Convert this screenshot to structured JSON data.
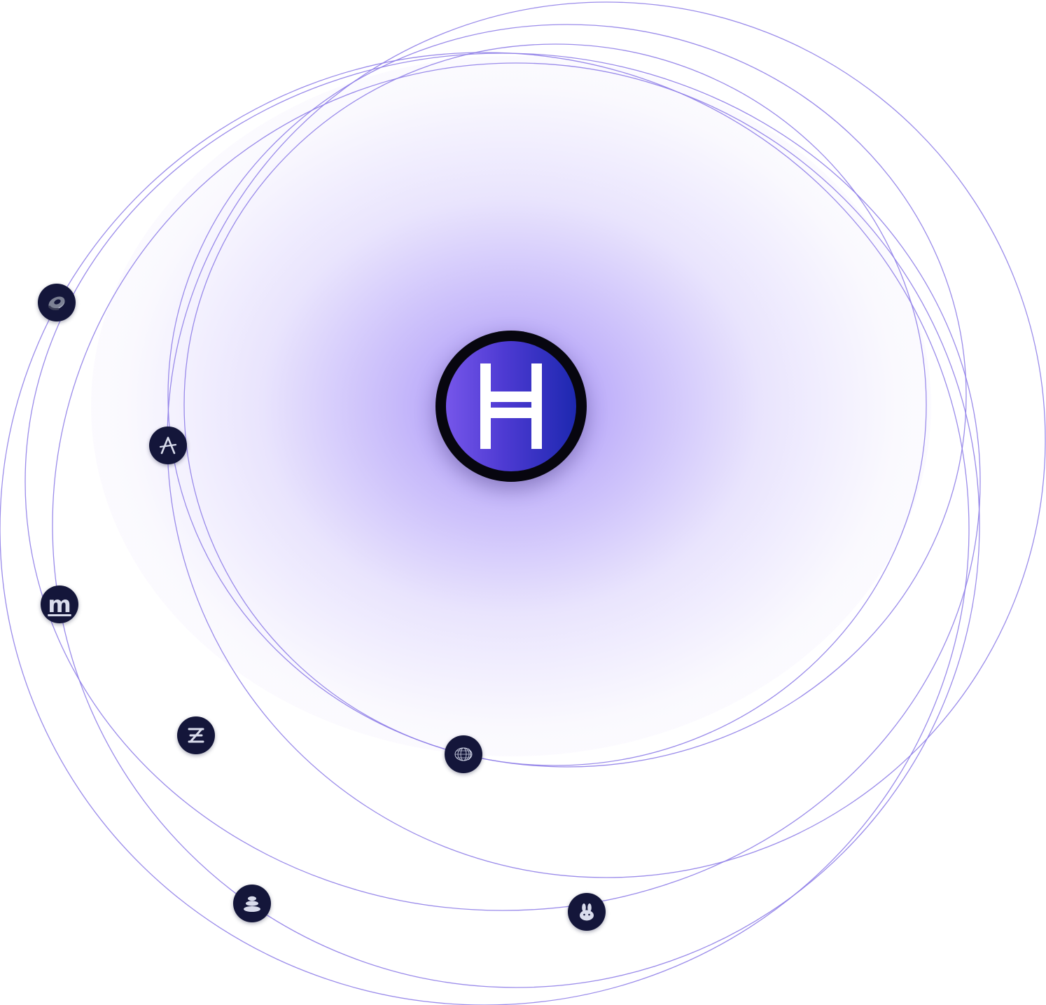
{
  "hub": {
    "icon": "hbar-h-logo",
    "gradient_start": "#7656ea",
    "gradient_end": "#1d28b0",
    "ring_color": "#07060f"
  },
  "glow_color": "#967df5",
  "orbit_color": "#8f7ee8",
  "node_color": "#14163a",
  "nodes": [
    {
      "icon": "ring-token-icon"
    },
    {
      "icon": "aave-a-icon"
    },
    {
      "icon": "m-token-icon",
      "glyph": "m"
    },
    {
      "icon": "z-token-icon"
    },
    {
      "icon": "wireframe-shell-icon"
    },
    {
      "icon": "stacked-coins-icon"
    },
    {
      "icon": "bunny-icon"
    }
  ]
}
